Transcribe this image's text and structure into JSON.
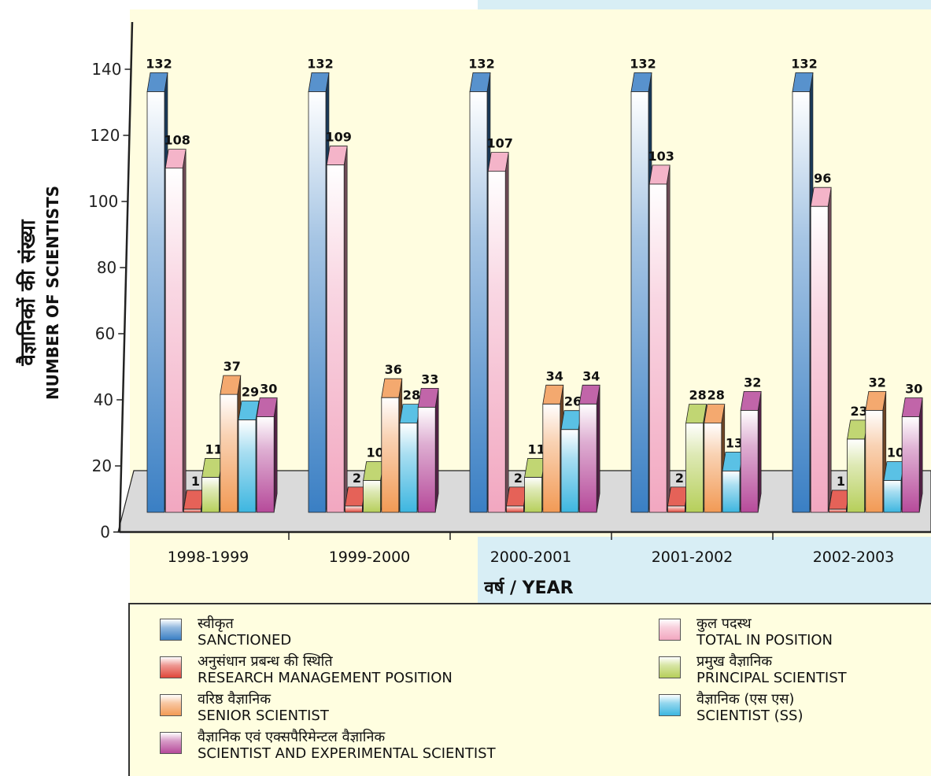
{
  "chart_data": {
    "type": "bar",
    "categories": [
      "1998-1999",
      "1999-2000",
      "2000-2001",
      "2001-2002",
      "2002-2003"
    ],
    "ylabel_hi": "वैज्ञानिकों की संख्या",
    "ylabel_en": "NUMBER OF SCIENTISTS",
    "xlabel": "वर्ष / YEAR",
    "ylim": [
      0,
      140
    ],
    "yticks": [
      "0",
      "20",
      "40",
      "60",
      "80",
      "100",
      "120",
      "140"
    ],
    "series": [
      {
        "key": "sanctioned",
        "name_hi": "स्वीकृत",
        "name_en": "SANCTIONED",
        "color": "#3a7fc4",
        "values": [
          132,
          132,
          132,
          132,
          132
        ]
      },
      {
        "key": "total",
        "name_hi": "कुल पदस्थ",
        "name_en": "TOTAL IN POSITION",
        "color": "#f2a7c0",
        "values": [
          108,
          109,
          107,
          103,
          96
        ]
      },
      {
        "key": "rmp",
        "name_hi": "अनुसंधान प्रबन्ध की स्थिति",
        "name_en": "RESEARCH MANAGEMENT POSITION",
        "color": "#e0463a",
        "values": [
          1,
          2,
          2,
          2,
          1
        ]
      },
      {
        "key": "principal",
        "name_hi": "प्रमुख वैज्ञानिक",
        "name_en": "PRINCIPAL SCIENTIST",
        "color": "#b6cf5a",
        "values": [
          11,
          10,
          11,
          28,
          23
        ]
      },
      {
        "key": "senior",
        "name_hi": "वरिष्ठ वैज्ञानिक",
        "name_en": "SENIOR SCIENTIST",
        "color": "#f29a55",
        "values": [
          37,
          36,
          34,
          28,
          32
        ]
      },
      {
        "key": "ss",
        "name_hi": "वैज्ञानिक (एस एस)",
        "name_en": "SCIENTIST (SS)",
        "color": "#3db6e0",
        "values": [
          29,
          28,
          26,
          13,
          10
        ]
      },
      {
        "key": "sci",
        "name_hi": "वैज्ञानिक एवं एक्सपैरिमेन्टल वैज्ञानिक",
        "name_en": "SCIENTIST AND EXPERIMENTAL SCIENTIST",
        "color": "#b64a9a",
        "values": [
          30,
          33,
          34,
          32,
          30
        ]
      }
    ],
    "legend_order": [
      "sanctioned",
      "total",
      "rmp",
      "principal",
      "senior",
      "ss",
      "sci"
    ]
  },
  "colors": {
    "panel_yellow": "#fffde0",
    "panel_blue": "#d8eef5",
    "floor": "#dadada"
  }
}
